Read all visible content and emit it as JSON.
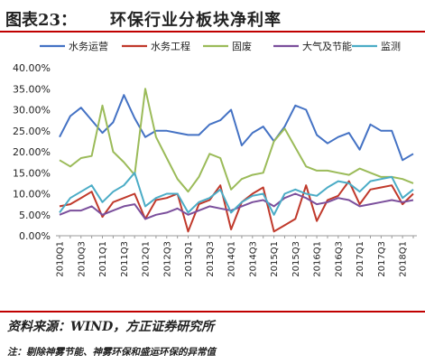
{
  "header": {
    "figure_label": "图表23：",
    "title": "环保行业分板块净利率"
  },
  "footer": {
    "source": "资料来源：WIND，方正证券研究所",
    "note": "注：剔除神雾节能、神雾环保和盛运环保的异常值"
  },
  "chart_data": {
    "type": "line",
    "title": "",
    "xlabel": "",
    "ylabel": "",
    "ylim": [
      0,
      40
    ],
    "y_ticks": [
      "0.00%",
      "5.00%",
      "10.00%",
      "15.00%",
      "20.00%",
      "25.00%",
      "30.00%",
      "35.00%",
      "40.00%"
    ],
    "grid": false,
    "legend_position": "top",
    "x": [
      "2010Q1",
      "2010Q2",
      "2010Q3",
      "2010Q4",
      "2011Q1",
      "2011Q2",
      "2011Q3",
      "2011Q4",
      "2012Q1",
      "2012Q2",
      "2012Q3",
      "2012Q4",
      "2013Q1",
      "2013Q2",
      "2013Q3",
      "2013Q4",
      "2014Q1",
      "2014Q2",
      "2014Q3",
      "2014Q4",
      "2015Q1",
      "2015Q2",
      "2015Q3",
      "2015Q4",
      "2016Q1",
      "2016Q2",
      "2016Q3",
      "2016Q4",
      "2017Q1",
      "2017Q2",
      "2017Q3",
      "2017Q4",
      "2018Q1",
      "2018Q2"
    ],
    "x_tick_labels": [
      "2010Q1",
      "2010Q3",
      "2011Q1",
      "2011Q3",
      "2012Q1",
      "2012Q3",
      "2013Q1",
      "2013Q3",
      "2014Q1",
      "2014Q3",
      "2015Q1",
      "2015Q3",
      "2016Q1",
      "2016Q3",
      "2017Q1",
      "2017Q3",
      "2018Q1"
    ],
    "series": [
      {
        "name": "水务运营",
        "color": "#4472c4",
        "values": [
          23.5,
          28.5,
          30.5,
          27.5,
          24.5,
          27.0,
          33.5,
          28.0,
          23.5,
          25.0,
          25.0,
          24.5,
          24.0,
          24.0,
          26.5,
          27.5,
          30.0,
          21.5,
          24.5,
          26.0,
          22.5,
          26.0,
          31.0,
          30.0,
          24.0,
          22.0,
          23.5,
          24.5,
          20.5,
          26.5,
          25.0,
          25.0,
          18.0,
          19.5
        ]
      },
      {
        "name": "水务工程",
        "color": "#c0392b",
        "values": [
          7.0,
          7.5,
          9.0,
          10.5,
          4.5,
          8.0,
          9.0,
          10.0,
          4.0,
          8.5,
          9.0,
          10.0,
          1.0,
          7.5,
          8.5,
          12.0,
          1.5,
          8.0,
          10.0,
          11.5,
          1.0,
          2.5,
          4.0,
          12.0,
          3.5,
          8.5,
          9.5,
          13.0,
          7.5,
          11.0,
          11.5,
          12.0,
          7.5,
          10.0
        ]
      },
      {
        "name": "固废",
        "color": "#9bbb59",
        "values": [
          18.0,
          16.5,
          18.5,
          19.0,
          31.0,
          20.0,
          17.5,
          14.5,
          35.0,
          23.5,
          18.5,
          13.5,
          10.5,
          14.0,
          19.5,
          18.5,
          11.0,
          13.5,
          14.5,
          15.0,
          22.5,
          25.5,
          21.0,
          16.5,
          15.5,
          15.5,
          15.0,
          14.5,
          16.0,
          15.0,
          14.0,
          14.0,
          13.5,
          12.5
        ]
      },
      {
        "name": "大气及节能",
        "color": "#7b4f9c",
        "values": [
          5.0,
          6.0,
          6.0,
          7.0,
          5.0,
          6.0,
          7.0,
          7.5,
          4.0,
          5.0,
          5.5,
          6.5,
          5.0,
          6.0,
          7.0,
          6.5,
          6.0,
          7.0,
          8.0,
          8.5,
          7.0,
          9.0,
          10.0,
          9.0,
          7.5,
          8.0,
          9.0,
          8.5,
          7.0,
          7.5,
          8.0,
          8.5,
          8.0,
          8.5
        ]
      },
      {
        "name": "监测",
        "color": "#4bacc6",
        "values": [
          5.5,
          9.0,
          10.5,
          12.0,
          8.0,
          10.5,
          12.0,
          15.0,
          7.0,
          9.0,
          10.0,
          10.0,
          5.5,
          8.0,
          9.0,
          11.0,
          5.5,
          8.0,
          9.5,
          10.0,
          5.0,
          10.0,
          11.0,
          10.0,
          9.5,
          11.5,
          13.0,
          12.5,
          10.5,
          13.0,
          13.5,
          14.0,
          9.0,
          11.0
        ]
      }
    ]
  }
}
